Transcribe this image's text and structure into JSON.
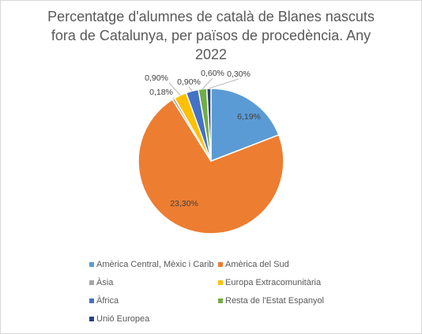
{
  "chart_data": {
    "type": "pie",
    "title": "Percentatge d'alumnes de català de Blanes nascuts fora de Catalunya, per països de procedència. Any 2022",
    "categories": [
      "Amèrica Central, Mèxic i Carib",
      "Amèrica del Sud",
      "Àsia",
      "Europa Extracomunitària",
      "Àfrica",
      "Resta de l'Estat Espanyol",
      "Unió Europea"
    ],
    "values": [
      6.19,
      23.3,
      0.18,
      0.9,
      0.9,
      0.6,
      0.3
    ],
    "value_labels": [
      "6,19%",
      "23,30%",
      "0,18%",
      "0,90%",
      "0,90%",
      "0,60%",
      "0,30%"
    ],
    "colors": [
      "#5b9bd5",
      "#ed7d31",
      "#a5a5a5",
      "#ffc000",
      "#4472c4",
      "#70ad47",
      "#264478"
    ]
  }
}
